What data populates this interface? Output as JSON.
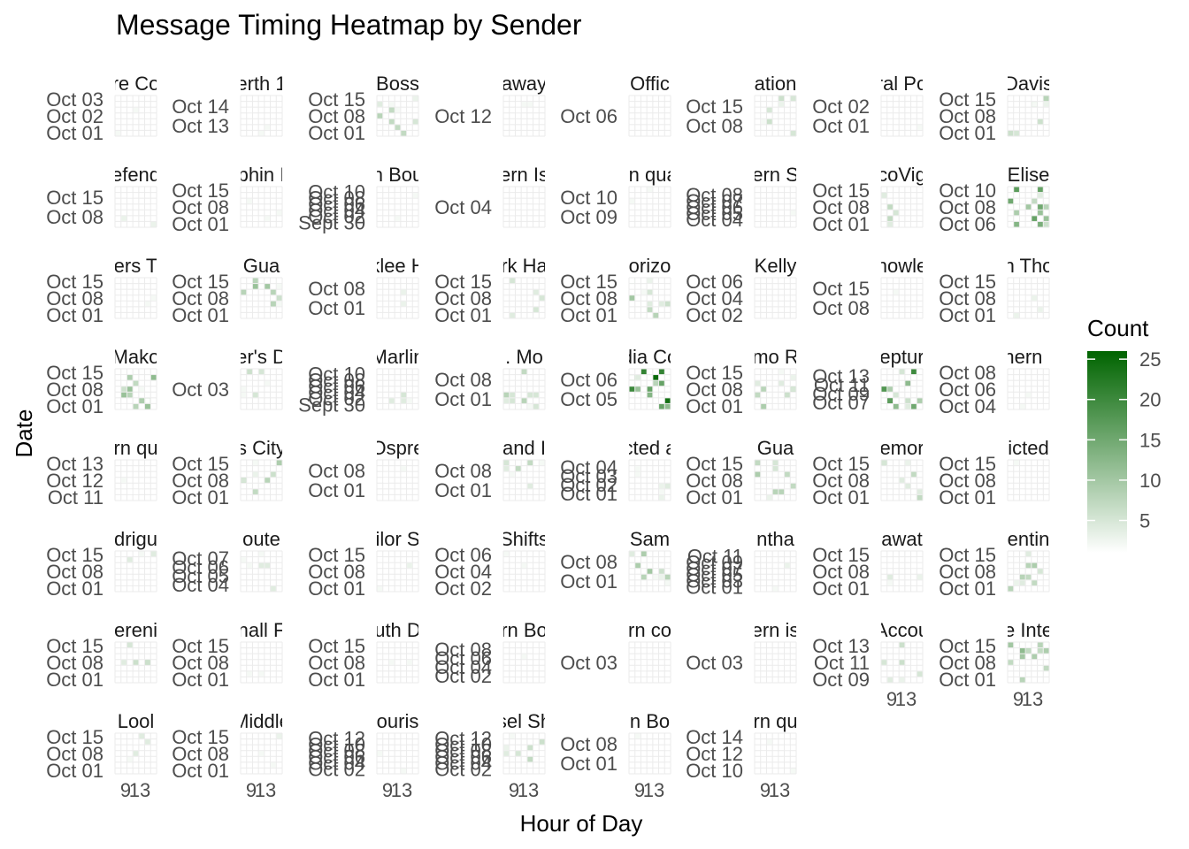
{
  "chart_data": {
    "type": "heatmap",
    "title": "Message Timing Heatmap by Sender",
    "xlabel": "Hour of Day",
    "ylabel": "Date",
    "x_ticks": [
      "9",
      "13"
    ],
    "legend": {
      "title": "Count",
      "position": "right",
      "ticks": [
        5,
        10,
        15,
        20,
        25
      ],
      "range": [
        1,
        26
      ],
      "color_low": "#ffffff",
      "color_high": "#006400"
    },
    "grid": true,
    "panels": [
      {
        "strip": "re Co",
        "ticks": [
          "Oct 03",
          "Oct 02",
          "Oct 01"
        ],
        "x_ticks": false,
        "max_value": 2
      },
      {
        "strip": "erth 1",
        "ticks": [
          "Oct 14",
          "Oct 13"
        ],
        "x_ticks": false,
        "max_value": 2
      },
      {
        "strip": "Boss",
        "ticks": [
          "Oct 15",
          "Oct 08",
          "Oct 01"
        ],
        "x_ticks": false,
        "max_value": 8
      },
      {
        "strip": "away",
        "ticks": [
          "Oct 12"
        ],
        "x_ticks": false,
        "max_value": 2
      },
      {
        "strip": "Offic",
        "ticks": [
          "Oct 06"
        ],
        "x_ticks": false,
        "max_value": 1
      },
      {
        "strip": "ation",
        "ticks": [
          "Oct 15",
          "Oct 08"
        ],
        "x_ticks": false,
        "max_value": 6
      },
      {
        "strip": "ral Po",
        "ticks": [
          "Oct 02",
          "Oct 01"
        ],
        "x_ticks": false,
        "max_value": 2
      },
      {
        "strip": "Davis",
        "ticks": [
          "Oct 15",
          "Oct 08",
          "Oct 01"
        ],
        "x_ticks": false,
        "max_value": 9
      },
      {
        "strip": "efend",
        "ticks": [
          "Oct 15",
          "Oct 08"
        ],
        "x_ticks": false,
        "max_value": 3
      },
      {
        "strip": "phin I",
        "ticks": [
          "Oct 15",
          "Oct 08",
          "Oct 01"
        ],
        "x_ticks": false,
        "max_value": 2
      },
      {
        "strip": "n Bou",
        "ticks": [
          "Oct 10",
          "Oct 08",
          "Oct 06",
          "Oct 04",
          "Oct 02",
          "Sept 30"
        ],
        "x_ticks": false,
        "max_value": 2
      },
      {
        "strip": "ern Is",
        "ticks": [
          "Oct 04"
        ],
        "x_ticks": false,
        "max_value": 1
      },
      {
        "strip": "rn qua",
        "ticks": [
          "Oct 10",
          "Oct 09"
        ],
        "x_ticks": false,
        "max_value": 2
      },
      {
        "strip": "ern S",
        "ticks": [
          "Oct 08",
          "Oct 07",
          "Oct 06",
          "Oct 05",
          "Oct 04"
        ],
        "x_ticks": false,
        "max_value": 2
      },
      {
        "strip": "coVig",
        "ticks": [
          "Oct 15",
          "Oct 08",
          "Oct 01"
        ],
        "x_ticks": false,
        "max_value": 7
      },
      {
        "strip": "Elise",
        "ticks": [
          "Oct 10",
          "Oct 08",
          "Oct 06"
        ],
        "x_ticks": false,
        "max_value": 17
      },
      {
        "strip": "ers T",
        "ticks": [
          "Oct 15",
          "Oct 08",
          "Oct 01"
        ],
        "x_ticks": false,
        "max_value": 2
      },
      {
        "strip": "Gua",
        "ticks": [
          "Oct 15",
          "Oct 08",
          "Oct 01"
        ],
        "x_ticks": false,
        "max_value": 11
      },
      {
        "strip": "klee H",
        "ticks": [
          "Oct 08",
          "Oct 01"
        ],
        "x_ticks": false,
        "max_value": 4
      },
      {
        "strip": "rk Ha",
        "ticks": [
          "Oct 15",
          "Oct 08",
          "Oct 01"
        ],
        "x_ticks": false,
        "max_value": 5
      },
      {
        "strip": "orizo",
        "ticks": [
          "Oct 15",
          "Oct 08",
          "Oct 01"
        ],
        "x_ticks": false,
        "max_value": 10
      },
      {
        "strip": "Kelly",
        "ticks": [
          "Oct 06",
          "Oct 04",
          "Oct 02"
        ],
        "x_ticks": false,
        "max_value": 1
      },
      {
        "strip": "nowle",
        "ticks": [
          "Oct 15",
          "Oct 08"
        ],
        "x_ticks": false,
        "max_value": 2
      },
      {
        "strip": "n Tho",
        "ticks": [
          "Oct 15",
          "Oct 08",
          "Oct 01"
        ],
        "x_ticks": false,
        "max_value": 3
      },
      {
        "strip": "Mako",
        "ticks": [
          "Oct 15",
          "Oct 08",
          "Oct 01"
        ],
        "x_ticks": false,
        "max_value": 14
      },
      {
        "strip": "er's D",
        "ticks": [
          "Oct 03"
        ],
        "x_ticks": false,
        "max_value": 6
      },
      {
        "strip": "Marlin",
        "ticks": [
          "Oct 10",
          "Oct 08",
          "Oct 06",
          "Oct 04",
          "Oct 02",
          "Sept 30"
        ],
        "x_ticks": false,
        "max_value": 5
      },
      {
        "strip": ". Mo",
        "ticks": [
          "Oct 08",
          "Oct 01"
        ],
        "x_ticks": false,
        "max_value": 8
      },
      {
        "strip": "dia Co",
        "ticks": [
          "Oct 06",
          "Oct 05"
        ],
        "x_ticks": false,
        "max_value": 25
      },
      {
        "strip": "mo R",
        "ticks": [
          "Oct 15",
          "Oct 08",
          "Oct 01"
        ],
        "x_ticks": false,
        "max_value": 9
      },
      {
        "strip": "eptur",
        "ticks": [
          "Oct 13",
          "Oct 11",
          "Oct 09",
          "Oct 07"
        ],
        "x_ticks": false,
        "max_value": 22
      },
      {
        "strip": "hern I",
        "ticks": [
          "Oct 08",
          "Oct 06",
          "Oct 04"
        ],
        "x_ticks": false,
        "max_value": 2
      },
      {
        "strip": "rn qu",
        "ticks": [
          "Oct 13",
          "Oct 12",
          "Oct 11"
        ],
        "x_ticks": false,
        "max_value": 2
      },
      {
        "strip": "s City",
        "ticks": [
          "Oct 15",
          "Oct 08",
          "Oct 01"
        ],
        "x_ticks": false,
        "max_value": 9
      },
      {
        "strip": "Ospre",
        "ticks": [
          "Oct 08",
          "Oct 01"
        ],
        "x_ticks": false,
        "max_value": 2
      },
      {
        "strip": "and I",
        "ticks": [
          "Oct 08",
          "Oct 01"
        ],
        "x_ticks": false,
        "max_value": 7
      },
      {
        "strip": "cted a",
        "ticks": [
          "Oct 04",
          "Oct 03",
          "Oct 02",
          "Oct 01"
        ],
        "x_ticks": false,
        "max_value": 4
      },
      {
        "strip": "Gua",
        "ticks": [
          "Oct 15",
          "Oct 08",
          "Oct 01"
        ],
        "x_ticks": false,
        "max_value": 9
      },
      {
        "strip": "emor",
        "ticks": [
          "Oct 15",
          "Oct 08",
          "Oct 01"
        ],
        "x_ticks": false,
        "max_value": 8
      },
      {
        "strip": "icted",
        "ticks": [
          "Oct 15",
          "Oct 08",
          "Oct 01"
        ],
        "x_ticks": false,
        "max_value": 2
      },
      {
        "strip": "drigu",
        "ticks": [
          "Oct 15",
          "Oct 08",
          "Oct 01"
        ],
        "x_ticks": false,
        "max_value": 4
      },
      {
        "strip": "oute",
        "ticks": [
          "Oct 07",
          "Oct 06",
          "Oct 05",
          "Oct 04"
        ],
        "x_ticks": false,
        "max_value": 4
      },
      {
        "strip": "ilor S",
        "ticks": [
          "Oct 15",
          "Oct 08",
          "Oct 01"
        ],
        "x_ticks": false,
        "max_value": 3
      },
      {
        "strip": "Shifts",
        "ticks": [
          "Oct 06",
          "Oct 04",
          "Oct 02"
        ],
        "x_ticks": false,
        "max_value": 2
      },
      {
        "strip": "Sam",
        "ticks": [
          "Oct 08",
          "Oct 01"
        ],
        "x_ticks": false,
        "max_value": 10
      },
      {
        "strip": "ntha",
        "ticks": [
          "Oct 11",
          "Oct 09",
          "Oct 07",
          "Oct 05",
          "Oct 03",
          "Oct 01"
        ],
        "x_ticks": false,
        "max_value": 3
      },
      {
        "strip": "awat",
        "ticks": [
          "Oct 15",
          "Oct 08",
          "Oct 01"
        ],
        "x_ticks": false,
        "max_value": 4
      },
      {
        "strip": "entin",
        "ticks": [
          "Oct 15",
          "Oct 08",
          "Oct 01"
        ],
        "x_ticks": false,
        "max_value": 9
      },
      {
        "strip": "ereni",
        "ticks": [
          "Oct 15",
          "Oct 08",
          "Oct 01"
        ],
        "x_ticks": false,
        "max_value": 6
      },
      {
        "strip": "nall F",
        "ticks": [
          "Oct 15",
          "Oct 08",
          "Oct 01"
        ],
        "x_ticks": false,
        "max_value": 2
      },
      {
        "strip": "uth D",
        "ticks": [
          "Oct 15",
          "Oct 08",
          "Oct 01"
        ],
        "x_ticks": false,
        "max_value": 2
      },
      {
        "strip": "rn Bo",
        "ticks": [
          "Oct 08",
          "Oct 06",
          "Oct 04",
          "Oct 02"
        ],
        "x_ticks": false,
        "max_value": 2
      },
      {
        "strip": "rn co",
        "ticks": [
          "Oct 03"
        ],
        "x_ticks": false,
        "max_value": 1
      },
      {
        "strip": "ern is",
        "ticks": [
          "Oct 03"
        ],
        "x_ticks": false,
        "max_value": 1
      },
      {
        "strip": "Accou",
        "ticks": [
          "Oct 13",
          "Oct 11",
          "Oct 09"
        ],
        "x_ticks": true,
        "max_value": 6
      },
      {
        "strip": "e Inte",
        "ticks": [
          "Oct 15",
          "Oct 08",
          "Oct 01"
        ],
        "x_ticks": true,
        "max_value": 12
      },
      {
        "strip": "Lool",
        "ticks": [
          "Oct 15",
          "Oct 08",
          "Oct 01"
        ],
        "x_ticks": true,
        "max_value": 4
      },
      {
        "strip": "Middle",
        "ticks": [
          "Oct 15",
          "Oct 08",
          "Oct 01"
        ],
        "x_ticks": true,
        "max_value": 3
      },
      {
        "strip": "ouris",
        "ticks": [
          "Oct 12",
          "Oct 10",
          "Oct 08",
          "Oct 06",
          "Oct 04",
          "Oct 02"
        ],
        "x_ticks": true,
        "max_value": 2
      },
      {
        "strip": "sel Sh",
        "ticks": [
          "Oct 12",
          "Oct 10",
          "Oct 08",
          "Oct 06",
          "Oct 04",
          "Oct 02"
        ],
        "x_ticks": true,
        "max_value": 7
      },
      {
        "strip": "n Bo",
        "ticks": [
          "Oct 08",
          "Oct 01"
        ],
        "x_ticks": true,
        "max_value": 2
      },
      {
        "strip": "rn qu",
        "ticks": [
          "Oct 14",
          "Oct 12",
          "Oct 10"
        ],
        "x_ticks": true,
        "max_value": 2
      }
    ]
  }
}
